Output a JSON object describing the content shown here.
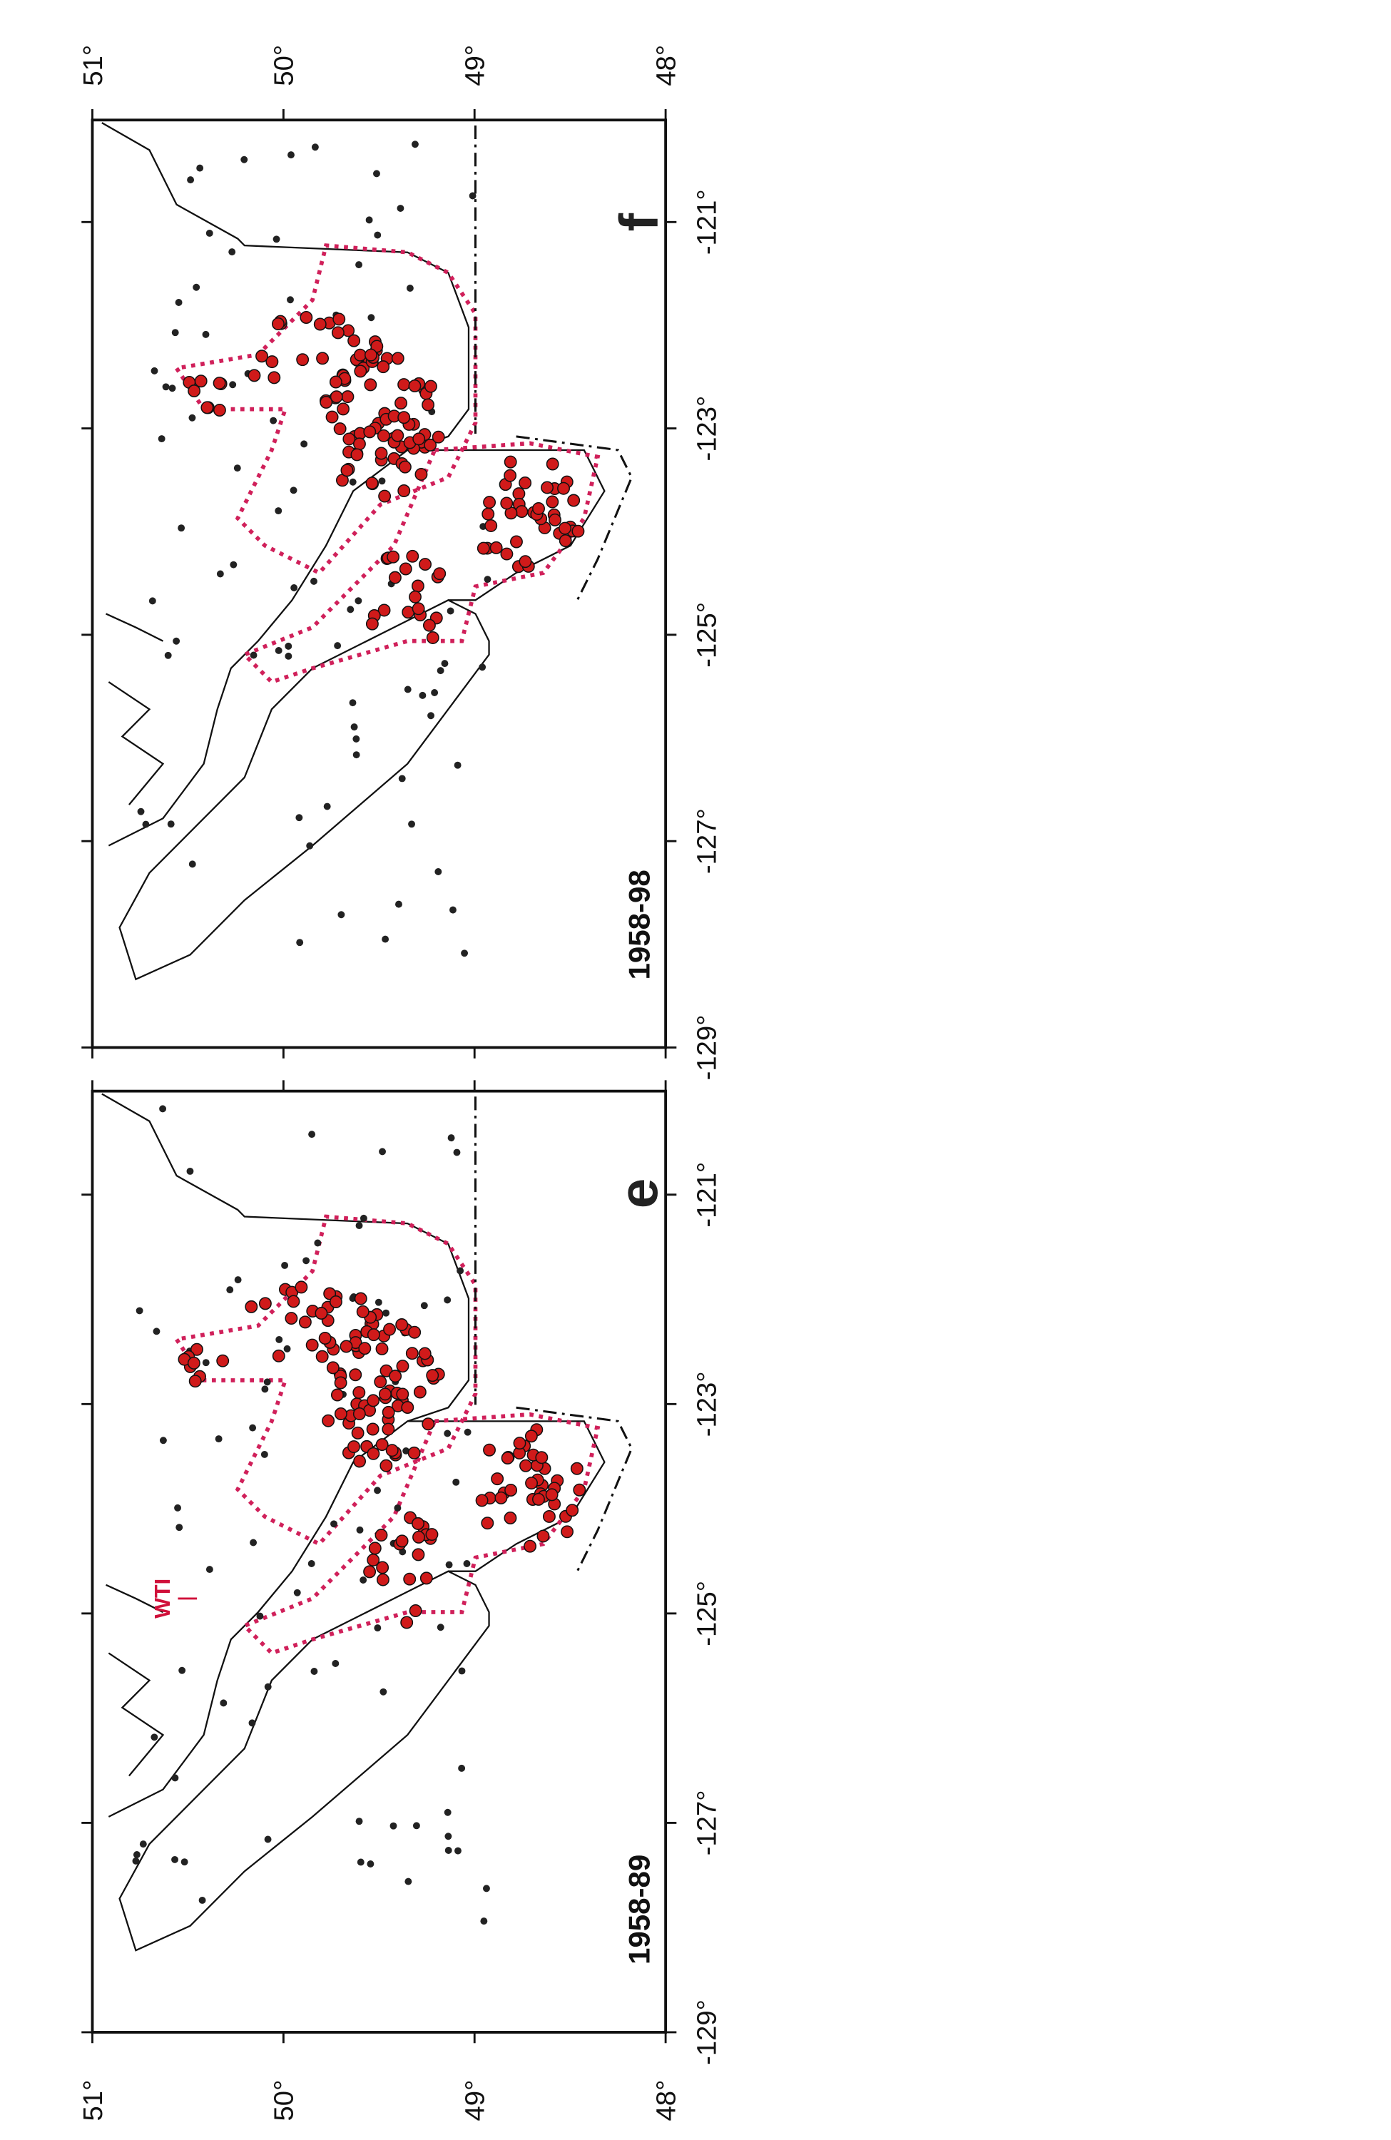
{
  "panels": [
    {
      "period": "1958-89",
      "letter": "e",
      "annotation": "WTI",
      "lat_ticks": [
        {
          "value": 51,
          "label": "51°"
        },
        {
          "value": 50,
          "label": "50°"
        },
        {
          "value": 49,
          "label": "49°"
        },
        {
          "value": 48,
          "label": "48°"
        }
      ],
      "lon_ticks": [
        {
          "value": -129,
          "label": "-129°"
        },
        {
          "value": -127,
          "label": "-127°"
        },
        {
          "value": -125,
          "label": "-125°"
        },
        {
          "value": -123,
          "label": "-123°"
        },
        {
          "value": -121,
          "label": "-121°"
        }
      ]
    },
    {
      "period": "1958-98",
      "letter": "f",
      "lat_ticks": [
        {
          "value": 51,
          "label": "51°"
        },
        {
          "value": 50,
          "label": "50°"
        },
        {
          "value": 49,
          "label": "49°"
        },
        {
          "value": 48,
          "label": "48°"
        }
      ],
      "lon_ticks": [
        {
          "value": -129,
          "label": "-129°"
        },
        {
          "value": -127,
          "label": "-127°"
        },
        {
          "value": -125,
          "label": "-125°"
        },
        {
          "value": -123,
          "label": "-123°"
        },
        {
          "value": -121,
          "label": "-121°"
        }
      ]
    }
  ]
}
